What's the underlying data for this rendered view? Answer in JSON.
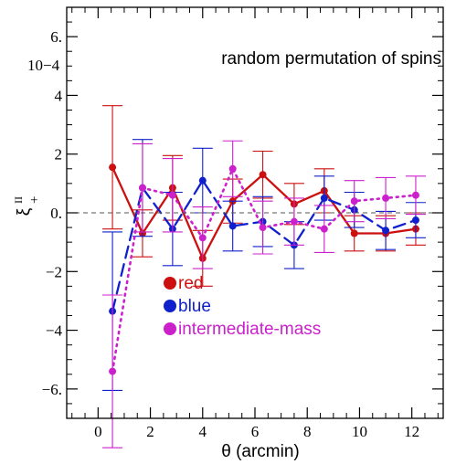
{
  "chart_data": {
    "type": "line",
    "xlabel": "θ (arcmin)",
    "ylabel_main": "ξ",
    "ylabel_sup": "II",
    "ylabel_sub": "+",
    "y_exponent_label": "10−4",
    "annotation": "random permutation of spins",
    "xlim": [
      -1.2,
      13.2
    ],
    "ylim": [
      -7.0,
      7.0
    ],
    "x_ticks": [
      0,
      2,
      4,
      6,
      8,
      10,
      12
    ],
    "x_tick_labels": [
      "0",
      "2",
      "4",
      "6",
      "8",
      "10",
      "12"
    ],
    "y_ticks": [
      -6,
      -4,
      -2,
      0,
      2,
      4,
      6
    ],
    "y_tick_labels": [
      "−6.",
      "−4",
      "−2",
      "0.",
      "2",
      "4",
      "6."
    ],
    "zero_line": true,
    "grid": false,
    "legend_position": "bottom-left",
    "series": [
      {
        "name": "red",
        "color": "#cc1010",
        "dash": "solid",
        "x": [
          0.55,
          1.7,
          2.85,
          4.0,
          5.15,
          6.3,
          7.5,
          8.65,
          9.8,
          11.0,
          12.15
        ],
        "y": [
          1.55,
          -0.7,
          0.85,
          -1.55,
          0.4,
          1.3,
          0.3,
          0.75,
          -0.7,
          -0.7,
          -0.55
        ],
        "err": [
          2.1,
          0.8,
          1.1,
          0.95,
          0.75,
          0.8,
          0.7,
          0.75,
          0.6,
          0.6,
          0.55
        ]
      },
      {
        "name": "blue",
        "color": "#1020cc",
        "dash": "dashed",
        "x": [
          0.55,
          1.7,
          2.85,
          4.0,
          5.15,
          6.3,
          7.5,
          8.65,
          9.8,
          11.0,
          12.15
        ],
        "y": [
          -3.35,
          0.85,
          -0.55,
          1.1,
          -0.45,
          -0.3,
          -1.1,
          0.5,
          0.1,
          -0.6,
          -0.25
        ],
        "err": [
          2.7,
          1.65,
          1.25,
          1.1,
          0.85,
          0.85,
          0.8,
          0.75,
          0.6,
          0.65,
          0.6
        ]
      },
      {
        "name": "intermediate-mass",
        "color": "#cc20cc",
        "dash": "dotted",
        "x": [
          0.55,
          1.7,
          2.85,
          4.0,
          5.15,
          6.3,
          7.5,
          8.65,
          9.8,
          11.0,
          12.15
        ],
        "y": [
          -5.4,
          0.85,
          0.6,
          -0.85,
          1.5,
          -0.5,
          -0.3,
          -0.55,
          0.4,
          0.5,
          0.6
        ],
        "err": [
          2.6,
          1.5,
          1.25,
          1.05,
          0.95,
          0.9,
          0.8,
          0.8,
          0.7,
          0.7,
          0.65
        ]
      }
    ]
  }
}
